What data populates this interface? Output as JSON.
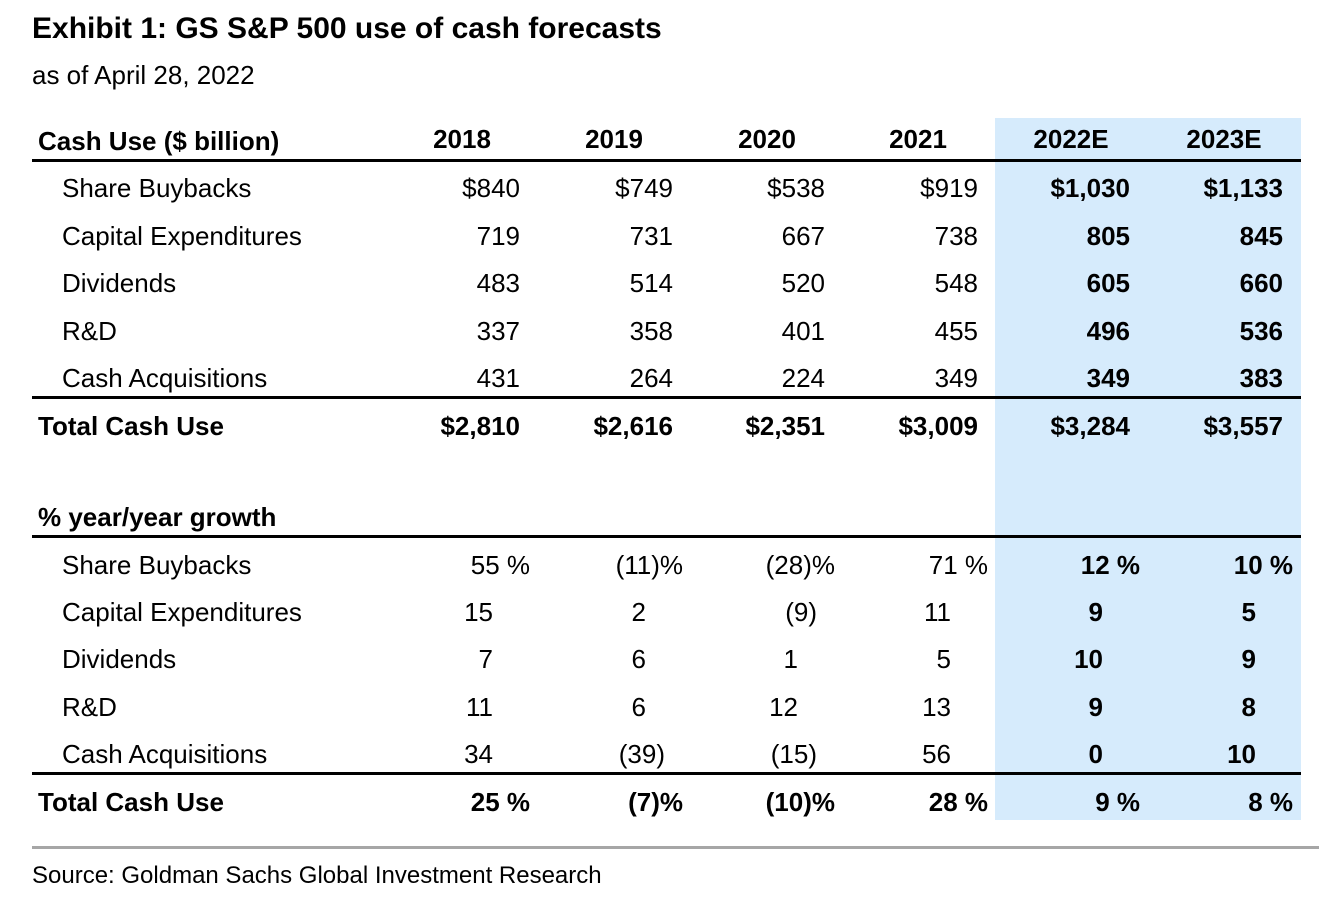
{
  "title": "Exhibit 1: GS S&P 500 use of cash forecasts",
  "subtitle": "as of April 28, 2022",
  "highlight_color": "#d6ebfc",
  "columns": [
    "2018",
    "2019",
    "2020",
    "2021",
    "2022E",
    "2023E"
  ],
  "section1": {
    "header": "Cash Use ($ billion)",
    "rows": [
      {
        "label": "Share Buybacks",
        "values": [
          "$840",
          "$749",
          "$538",
          "$919",
          "$1,030",
          "$1,133"
        ]
      },
      {
        "label": "Capital Expenditures",
        "values": [
          "719",
          "731",
          "667",
          "738",
          "805",
          "845"
        ]
      },
      {
        "label": "Dividends",
        "values": [
          "483",
          "514",
          "520",
          "548",
          "605",
          "660"
        ]
      },
      {
        "label": "R&D",
        "values": [
          "337",
          "358",
          "401",
          "455",
          "496",
          "536"
        ]
      },
      {
        "label": "Cash Acquisitions",
        "values": [
          "431",
          "264",
          "224",
          "349",
          "349",
          "383"
        ]
      }
    ],
    "total": {
      "label": "Total Cash Use",
      "values": [
        "$2,810",
        "$2,616",
        "$2,351",
        "$3,009",
        "$3,284",
        "$3,557"
      ]
    }
  },
  "section2": {
    "header": "% year/year growth",
    "rows": [
      {
        "label": "Share Buybacks",
        "values": [
          "55 %",
          "(11)%",
          "(28)%",
          "71 %",
          "12 %",
          "10 %"
        ]
      },
      {
        "label": "Capital Expenditures",
        "values": [
          "15",
          "2",
          "(9)",
          "11",
          "9",
          "5"
        ]
      },
      {
        "label": "Dividends",
        "values": [
          "7",
          "6",
          "1",
          "5",
          "10",
          "9"
        ]
      },
      {
        "label": "R&D",
        "values": [
          "11",
          "6",
          "12",
          "13",
          "9",
          "8"
        ]
      },
      {
        "label": "Cash Acquisitions",
        "values": [
          "34",
          "(39)",
          "(15)",
          "56",
          "0",
          "10"
        ]
      }
    ],
    "total": {
      "label": "Total Cash Use",
      "values": [
        "25 %",
        "(7)%",
        "(10)%",
        "28 %",
        "9 %",
        "8 %"
      ]
    }
  },
  "source": "Source: Goldman Sachs Global Investment Research"
}
